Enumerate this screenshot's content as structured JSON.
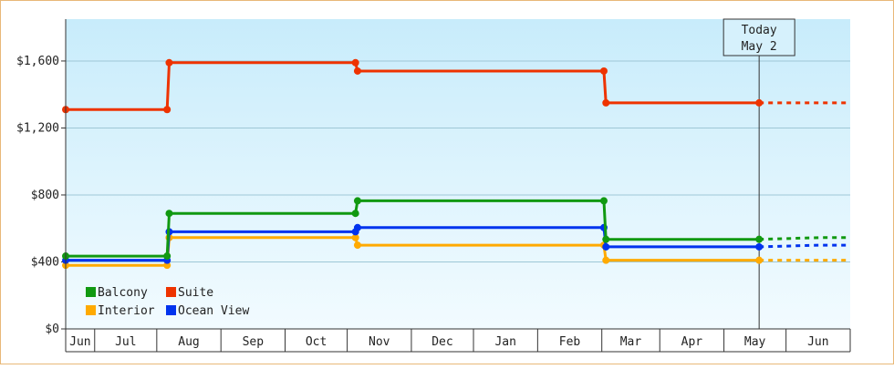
{
  "chart_data": {
    "type": "line",
    "step": true,
    "x_unit": "date",
    "ylim": [
      0,
      1850
    ],
    "yticks": [
      0,
      400,
      800,
      1200,
      1600
    ],
    "ytick_labels": [
      "$0",
      "$400",
      "$800",
      "$1,200",
      "$1,600"
    ],
    "x_range": [
      "2022-06-01",
      "2023-06-15"
    ],
    "month_labels": [
      {
        "label": "Jun",
        "start": "2022-06-01",
        "end": "2022-06-15"
      },
      {
        "label": "Jul",
        "start": "2022-06-15",
        "end": "2022-07-15"
      },
      {
        "label": "Aug",
        "start": "2022-07-15",
        "end": "2022-08-15"
      },
      {
        "label": "Sep",
        "start": "2022-08-15",
        "end": "2022-09-15"
      },
      {
        "label": "Oct",
        "start": "2022-09-15",
        "end": "2022-10-15"
      },
      {
        "label": "Nov",
        "start": "2022-10-15",
        "end": "2022-11-15"
      },
      {
        "label": "Dec",
        "start": "2022-11-15",
        "end": "2022-12-15"
      },
      {
        "label": "Jan",
        "start": "2022-12-15",
        "end": "2023-01-15"
      },
      {
        "label": "Feb",
        "start": "2023-01-15",
        "end": "2023-02-15"
      },
      {
        "label": "Mar",
        "start": "2023-02-15",
        "end": "2023-03-15"
      },
      {
        "label": "Apr",
        "start": "2023-03-15",
        "end": "2023-04-15"
      },
      {
        "label": "May",
        "start": "2023-04-15",
        "end": "2023-05-15"
      },
      {
        "label": "Jun",
        "start": "2023-05-15",
        "end": "2023-06-15"
      }
    ],
    "today_marker": {
      "line1": "Today",
      "line2": "May 2",
      "date": "2023-05-02"
    },
    "legend": {
      "placement": "bottom-left"
    },
    "series": [
      {
        "name": "Suite",
        "color": "#ee3300",
        "points": [
          [
            "2022-06-01",
            1310
          ],
          [
            "2022-07-20",
            1310
          ],
          [
            "2022-07-21",
            1590
          ],
          [
            "2022-10-19",
            1590
          ],
          [
            "2022-10-20",
            1540
          ],
          [
            "2023-02-16",
            1540
          ],
          [
            "2023-02-17",
            1350
          ],
          [
            "2023-05-02",
            1350
          ]
        ],
        "forecast": [
          [
            "2023-05-02",
            1350
          ],
          [
            "2023-06-15",
            1350
          ]
        ]
      },
      {
        "name": "Balcony",
        "color": "#119911",
        "points": [
          [
            "2022-06-01",
            435
          ],
          [
            "2022-07-20",
            435
          ],
          [
            "2022-07-21",
            690
          ],
          [
            "2022-10-19",
            690
          ],
          [
            "2022-10-20",
            765
          ],
          [
            "2023-02-16",
            765
          ],
          [
            "2023-02-17",
            535
          ],
          [
            "2023-05-02",
            535
          ]
        ],
        "forecast": [
          [
            "2023-05-02",
            535
          ],
          [
            "2023-05-31",
            545
          ],
          [
            "2023-06-15",
            545
          ]
        ]
      },
      {
        "name": "Ocean View",
        "color": "#0033ee",
        "points": [
          [
            "2022-06-01",
            410
          ],
          [
            "2022-07-20",
            410
          ],
          [
            "2022-07-21",
            580
          ],
          [
            "2022-10-19",
            580
          ],
          [
            "2022-10-20",
            605
          ],
          [
            "2023-02-16",
            605
          ],
          [
            "2023-02-17",
            490
          ],
          [
            "2023-05-02",
            490
          ]
        ],
        "forecast": [
          [
            "2023-05-02",
            490
          ],
          [
            "2023-05-31",
            500
          ],
          [
            "2023-06-15",
            500
          ]
        ]
      },
      {
        "name": "Interior",
        "color": "#ffaa00",
        "points": [
          [
            "2022-06-01",
            380
          ],
          [
            "2022-07-20",
            380
          ],
          [
            "2022-07-21",
            545
          ],
          [
            "2022-10-19",
            545
          ],
          [
            "2022-10-20",
            500
          ],
          [
            "2023-02-16",
            500
          ],
          [
            "2023-02-17",
            410
          ],
          [
            "2023-05-02",
            410
          ]
        ],
        "forecast": [
          [
            "2023-05-02",
            410
          ],
          [
            "2023-06-15",
            410
          ]
        ]
      }
    ]
  }
}
